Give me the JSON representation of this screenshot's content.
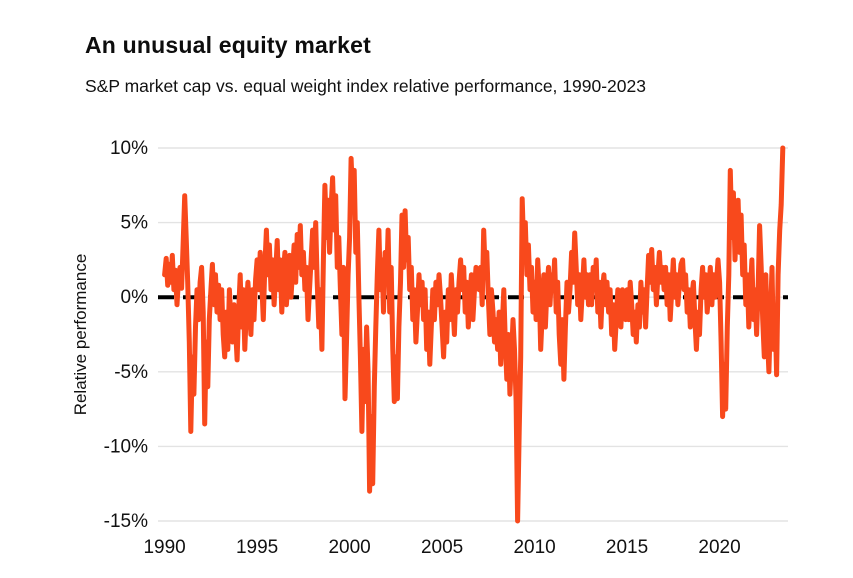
{
  "header": {
    "title": "An unusual equity market",
    "subtitle": "S&P market cap vs. equal weight index relative performance, 1990-2023"
  },
  "chart_data": {
    "type": "line",
    "title": "An unusual equity market",
    "subtitle": "S&P market cap vs. equal weight index relative performance, 1990-2023",
    "ylabel": "Relative performance",
    "xlabel": "",
    "ylim": [
      -15,
      10
    ],
    "xlim": [
      1989.75,
      2023.7
    ],
    "y_ticks": [
      10,
      5,
      0,
      -5,
      -10,
      -15
    ],
    "y_tick_suffix": "%",
    "x_ticks": [
      1990,
      1995,
      2000,
      2005,
      2010,
      2015,
      2020
    ],
    "grid": "horizontal",
    "legend": "none",
    "line_color": "#F8491C",
    "zero_line_color": "#000000",
    "grid_color": "#e3e3e3",
    "axis_text_color": "#111111",
    "start_year": 1990,
    "frequency": "monthly",
    "series_name": "Relative performance (market cap vs. equal weight)",
    "values_by_year": [
      [
        1.5,
        2.6,
        0.8,
        2.2,
        1.0,
        2.8,
        0.5,
        1.8,
        -0.5,
        1.2,
        2.0,
        0.6
      ],
      [
        3.5,
        6.8,
        4.0,
        1.0,
        -3.0,
        -9.0,
        -4.0,
        -6.5,
        -2.0,
        0.5,
        -1.5,
        1.0
      ],
      [
        2.0,
        -1.0,
        -8.5,
        -3.0,
        -6.0,
        -1.5,
        0.5,
        2.2,
        -0.5,
        1.5,
        -1.0,
        0.8
      ],
      [
        -1.5,
        0.5,
        -2.5,
        -4.0,
        -1.0,
        -3.5,
        0.5,
        -1.5,
        -3.0,
        -0.5,
        -2.0,
        -4.2
      ],
      [
        -1.0,
        1.5,
        -2.0,
        0.5,
        -3.5,
        -1.0,
        1.0,
        -0.5,
        -2.5,
        0.5,
        -1.5,
        1.2
      ],
      [
        2.5,
        0.5,
        3.0,
        1.0,
        -1.5,
        2.0,
        4.5,
        1.5,
        3.5,
        0.5,
        2.5,
        -0.5
      ],
      [
        1.5,
        3.8,
        0.5,
        2.5,
        -1.0,
        1.5,
        3.0,
        -0.5,
        1.0,
        2.8,
        0.0,
        1.8
      ],
      [
        3.5,
        1.0,
        4.2,
        2.0,
        4.8,
        1.5,
        3.0,
        0.5,
        2.0,
        -1.5,
        0.5,
        2.5
      ],
      [
        4.5,
        2.0,
        5.0,
        1.0,
        -2.0,
        0.5,
        -3.5,
        2.5,
        7.5,
        4.0,
        6.5,
        3.0
      ],
      [
        6.0,
        8.0,
        4.5,
        6.8,
        2.0,
        4.0,
        0.5,
        -2.5,
        2.0,
        -6.8,
        -3.0,
        1.5
      ],
      [
        4.0,
        9.3,
        6.5,
        8.5,
        3.0,
        5.0,
        0.0,
        -4.0,
        -9.0,
        -3.5,
        -7.0,
        -2.0
      ],
      [
        -5.0,
        -13.0,
        -8.0,
        -12.5,
        -6.0,
        -2.0,
        1.5,
        4.5,
        0.5,
        2.5,
        -1.0,
        3.0
      ],
      [
        1.0,
        4.5,
        -1.0,
        2.0,
        -3.5,
        -7.0,
        -4.0,
        -6.8,
        -2.0,
        1.0,
        5.5,
        2.0
      ],
      [
        5.8,
        2.5,
        4.0,
        0.5,
        2.0,
        -1.5,
        0.5,
        -3.0,
        -1.0,
        1.5,
        -0.5,
        1.0
      ],
      [
        -1.5,
        0.5,
        -3.5,
        -1.0,
        -4.5,
        -2.0,
        0.5,
        -1.5,
        1.0,
        -0.5,
        1.5,
        0.0
      ],
      [
        -2.0,
        -4.0,
        -1.0,
        -3.0,
        0.5,
        -1.5,
        1.5,
        -0.5,
        -2.5,
        0.5,
        -1.0,
        1.0
      ],
      [
        2.5,
        0.5,
        2.0,
        -1.0,
        1.0,
        -2.0,
        0.0,
        1.5,
        -1.5,
        0.5,
        2.0,
        1.0
      ],
      [
        0.5,
        2.0,
        -0.5,
        4.5,
        1.5,
        3.0,
        0.0,
        -2.5,
        0.5,
        -1.0,
        -3.0,
        -1.5
      ],
      [
        -3.5,
        -1.0,
        -4.5,
        -2.0,
        0.5,
        -3.0,
        -5.5,
        -2.5,
        -6.5,
        -4.0,
        -1.5,
        -3.5
      ],
      [
        -7.0,
        -15.0,
        -9.0,
        -4.0,
        6.6,
        3.0,
        5.0,
        1.5,
        3.5,
        0.5,
        2.0,
        -1.0
      ],
      [
        1.0,
        -1.5,
        2.5,
        0.5,
        -3.5,
        -1.0,
        1.5,
        -2.0,
        0.5,
        2.0,
        -0.5,
        1.5
      ],
      [
        0.5,
        2.5,
        -1.0,
        1.0,
        -2.5,
        -4.5,
        -1.5,
        -5.5,
        -2.0,
        1.0,
        -1.0,
        0.5
      ],
      [
        3.0,
        1.0,
        4.3,
        2.0,
        -0.5,
        1.5,
        -1.5,
        0.5,
        2.5,
        0.0,
        1.5,
        -0.5
      ],
      [
        1.5,
        -0.5,
        2.0,
        0.5,
        2.5,
        -1.0,
        1.0,
        -2.0,
        0.5,
        1.5,
        -0.5,
        1.0
      ],
      [
        -1.0,
        0.5,
        -2.5,
        -0.5,
        -3.5,
        -1.5,
        0.5,
        -1.0,
        -2.0,
        0.5,
        -0.5,
        -1.5
      ],
      [
        0.5,
        -1.5,
        1.0,
        -0.5,
        -2.5,
        -1.0,
        -3.0,
        -0.5,
        -2.0,
        1.0,
        -1.0,
        0.5
      ],
      [
        -2.0,
        0.5,
        2.8,
        1.0,
        3.2,
        0.5,
        2.0,
        -0.5,
        1.5,
        3.0,
        1.0,
        2.0
      ],
      [
        0.5,
        2.0,
        -0.5,
        1.5,
        -1.5,
        0.5,
        2.5,
        0.0,
        1.5,
        -0.5,
        1.0,
        2.2
      ],
      [
        2.5,
        0.5,
        1.5,
        -1.0,
        0.5,
        -2.0,
        0.0,
        1.0,
        -1.5,
        -3.5,
        -1.0,
        -2.5
      ],
      [
        0.5,
        2.0,
        0.0,
        1.5,
        -1.0,
        0.5,
        2.0,
        -0.5,
        1.5,
        0.0,
        1.0,
        2.5
      ],
      [
        1.0,
        -3.0,
        -8.0,
        -4.5,
        -7.5,
        -2.0,
        1.5,
        8.5,
        4.0,
        7.0,
        2.5,
        5.0
      ],
      [
        6.5,
        3.0,
        5.5,
        1.5,
        3.5,
        -0.5,
        1.5,
        -2.0,
        0.5,
        2.5,
        -1.5,
        0.5
      ],
      [
        -2.5,
        0.5,
        4.8,
        2.0,
        -1.5,
        -4.0,
        1.5,
        -2.5,
        -5.0,
        -1.5,
        2.0,
        -3.5
      ],
      [
        -1.0,
        -5.2,
        1.5,
        4.5,
        6.2,
        10.0
      ]
    ]
  }
}
